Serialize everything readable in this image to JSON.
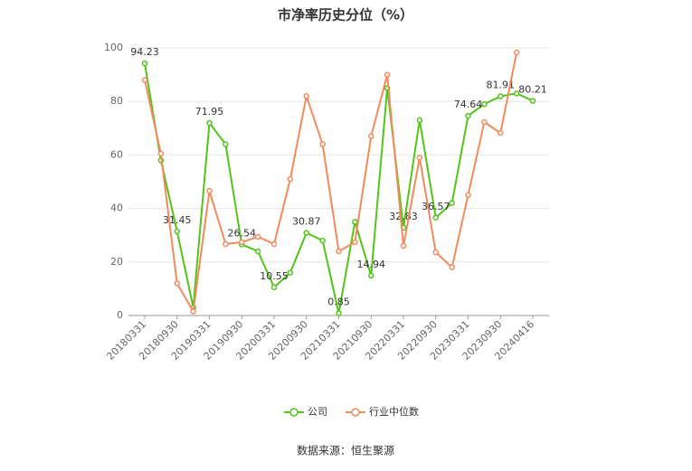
{
  "chart_data": {
    "type": "line",
    "title": "市净率历史分位（%）",
    "categories": [
      "20180331",
      null,
      "20180930",
      null,
      "20190331",
      null,
      "20190930",
      null,
      "20200331",
      null,
      "20200930",
      null,
      "20210331",
      null,
      "20210930",
      null,
      "20220331",
      null,
      "20220930",
      null,
      "20230331",
      null,
      "20230930",
      null,
      "20240416"
    ],
    "series": [
      {
        "name": "公司",
        "color": "#52c41a",
        "values": [
          94.23,
          58,
          31.45,
          3,
          71.95,
          64,
          26.54,
          24,
          10.55,
          16,
          30.87,
          28,
          0.85,
          35,
          14.94,
          85,
          32.83,
          73,
          36.57,
          42,
          74.64,
          79,
          81.91,
          83,
          80.21
        ],
        "value_labels": [
          "94.23",
          null,
          "31.45",
          null,
          "71.95",
          null,
          "26.54",
          null,
          "10.55",
          null,
          "30.87",
          null,
          "0.85",
          null,
          "14.94",
          null,
          "32.83",
          null,
          "36.57",
          null,
          "74.64",
          null,
          "81.91",
          null,
          "80.21"
        ]
      },
      {
        "name": "行业中位数",
        "color": "#f28b5b",
        "values": [
          88,
          60.5,
          12,
          1.5,
          46.6,
          26.7,
          27.4,
          29.4,
          26.7,
          51,
          82,
          64,
          24,
          27.4,
          67,
          90,
          26,
          59,
          23.6,
          18,
          45,
          72.3,
          68.2,
          98.3,
          null
        ]
      }
    ],
    "ylim": [
      0,
      100
    ],
    "yticks": [
      0,
      20,
      40,
      60,
      80,
      100
    ],
    "grid": true,
    "source": "数据来源：恒生聚源"
  }
}
